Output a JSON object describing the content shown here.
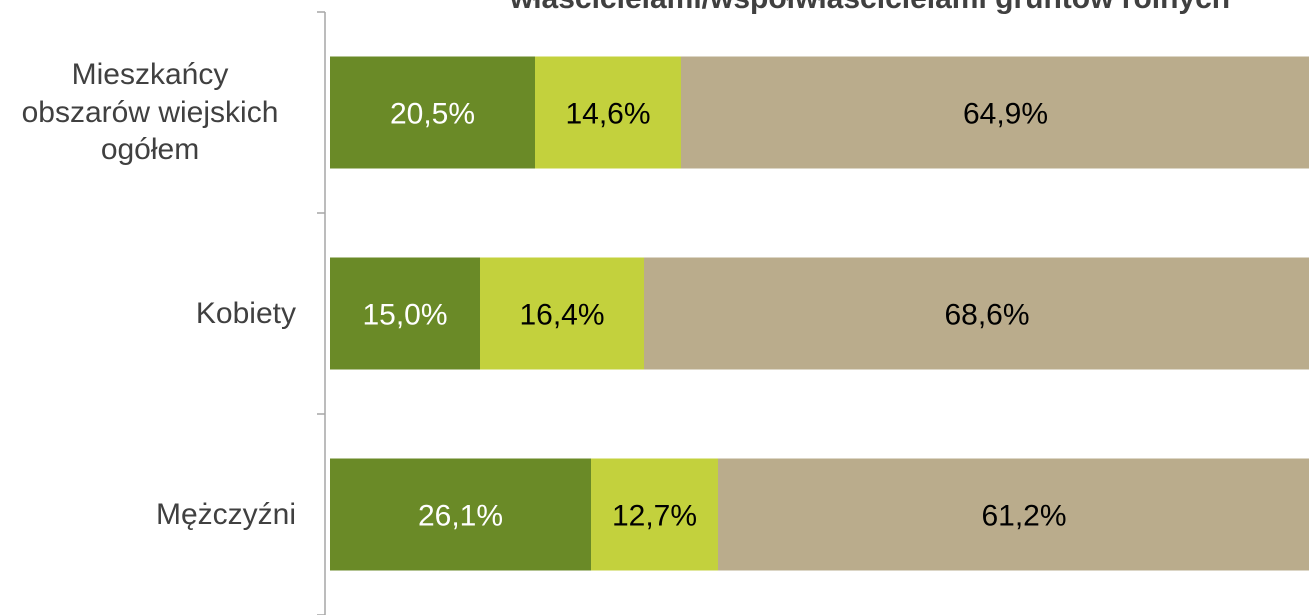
{
  "chart_data": {
    "type": "stacked-bar-horizontal",
    "title": "właścicielami/współwłaścicielami gruntów rolnych",
    "categories": [
      "Mieszkańcy obszarów wiejskich ogółem",
      "Kobiety",
      "Mężczyźni"
    ],
    "xlim": [
      0,
      100
    ],
    "series": [
      {
        "color": "#6a8a27",
        "values": [
          20.5,
          15.0,
          26.1
        ],
        "value_labels": [
          "20,5%",
          "15,0%",
          "26,1%"
        ]
      },
      {
        "color": "#c3d13d",
        "values": [
          14.6,
          16.4,
          12.7
        ],
        "value_labels": [
          "14,6%",
          "16,4%",
          "12,7%"
        ]
      },
      {
        "color": "#baac8c",
        "values": [
          64.9,
          68.6,
          61.2
        ],
        "value_labels": [
          "64,9%",
          "68,6%",
          "61,2%"
        ]
      }
    ]
  }
}
